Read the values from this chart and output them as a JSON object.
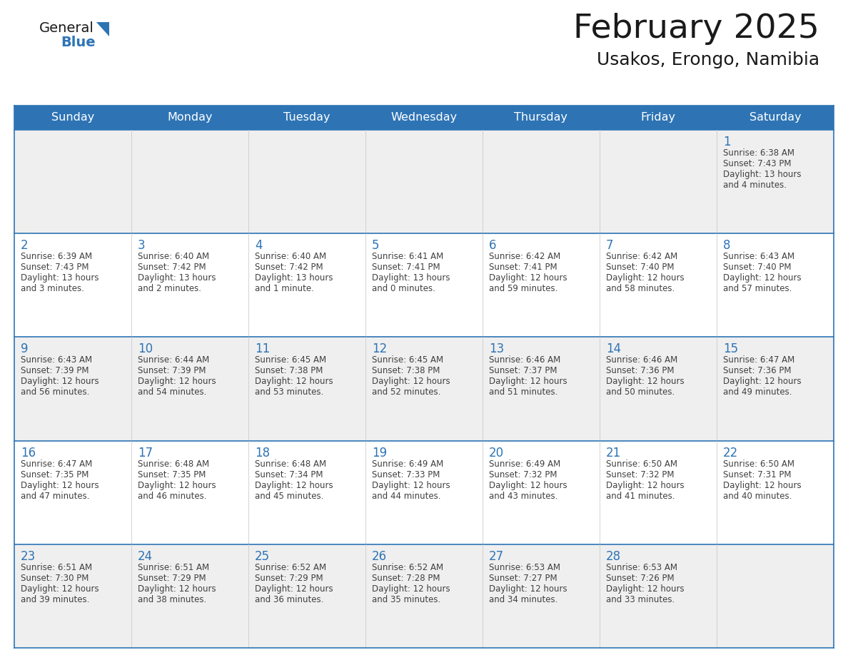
{
  "title": "February 2025",
  "subtitle": "Usakos, Erongo, Namibia",
  "days_of_week": [
    "Sunday",
    "Monday",
    "Tuesday",
    "Wednesday",
    "Thursday",
    "Friday",
    "Saturday"
  ],
  "header_bg_color": "#2e74b5",
  "header_text_color": "#ffffff",
  "cell_bg_white": "#ffffff",
  "cell_bg_gray": "#efefef",
  "day_number_color": "#2e74b5",
  "info_text_color": "#404040",
  "border_color": "#2e74b5",
  "row_divider_color": "#2e74b5",
  "col_divider_color": "#cccccc",
  "title_color": "#1a1a1a",
  "subtitle_color": "#1a1a1a",
  "logo_general_color": "#1a1a1a",
  "logo_blue_color": "#2e74b5",
  "logo_triangle_color": "#2e74b5",
  "calendar_data": [
    [
      null,
      null,
      null,
      null,
      null,
      null,
      {
        "day": 1,
        "sunrise": "6:38 AM",
        "sunset": "7:43 PM",
        "daylight": "13 hours and 4 minutes."
      }
    ],
    [
      {
        "day": 2,
        "sunrise": "6:39 AM",
        "sunset": "7:43 PM",
        "daylight": "13 hours and 3 minutes."
      },
      {
        "day": 3,
        "sunrise": "6:40 AM",
        "sunset": "7:42 PM",
        "daylight": "13 hours and 2 minutes."
      },
      {
        "day": 4,
        "sunrise": "6:40 AM",
        "sunset": "7:42 PM",
        "daylight": "13 hours and 1 minute."
      },
      {
        "day": 5,
        "sunrise": "6:41 AM",
        "sunset": "7:41 PM",
        "daylight": "13 hours and 0 minutes."
      },
      {
        "day": 6,
        "sunrise": "6:42 AM",
        "sunset": "7:41 PM",
        "daylight": "12 hours and 59 minutes."
      },
      {
        "day": 7,
        "sunrise": "6:42 AM",
        "sunset": "7:40 PM",
        "daylight": "12 hours and 58 minutes."
      },
      {
        "day": 8,
        "sunrise": "6:43 AM",
        "sunset": "7:40 PM",
        "daylight": "12 hours and 57 minutes."
      }
    ],
    [
      {
        "day": 9,
        "sunrise": "6:43 AM",
        "sunset": "7:39 PM",
        "daylight": "12 hours and 56 minutes."
      },
      {
        "day": 10,
        "sunrise": "6:44 AM",
        "sunset": "7:39 PM",
        "daylight": "12 hours and 54 minutes."
      },
      {
        "day": 11,
        "sunrise": "6:45 AM",
        "sunset": "7:38 PM",
        "daylight": "12 hours and 53 minutes."
      },
      {
        "day": 12,
        "sunrise": "6:45 AM",
        "sunset": "7:38 PM",
        "daylight": "12 hours and 52 minutes."
      },
      {
        "day": 13,
        "sunrise": "6:46 AM",
        "sunset": "7:37 PM",
        "daylight": "12 hours and 51 minutes."
      },
      {
        "day": 14,
        "sunrise": "6:46 AM",
        "sunset": "7:36 PM",
        "daylight": "12 hours and 50 minutes."
      },
      {
        "day": 15,
        "sunrise": "6:47 AM",
        "sunset": "7:36 PM",
        "daylight": "12 hours and 49 minutes."
      }
    ],
    [
      {
        "day": 16,
        "sunrise": "6:47 AM",
        "sunset": "7:35 PM",
        "daylight": "12 hours and 47 minutes."
      },
      {
        "day": 17,
        "sunrise": "6:48 AM",
        "sunset": "7:35 PM",
        "daylight": "12 hours and 46 minutes."
      },
      {
        "day": 18,
        "sunrise": "6:48 AM",
        "sunset": "7:34 PM",
        "daylight": "12 hours and 45 minutes."
      },
      {
        "day": 19,
        "sunrise": "6:49 AM",
        "sunset": "7:33 PM",
        "daylight": "12 hours and 44 minutes."
      },
      {
        "day": 20,
        "sunrise": "6:49 AM",
        "sunset": "7:32 PM",
        "daylight": "12 hours and 43 minutes."
      },
      {
        "day": 21,
        "sunrise": "6:50 AM",
        "sunset": "7:32 PM",
        "daylight": "12 hours and 41 minutes."
      },
      {
        "day": 22,
        "sunrise": "6:50 AM",
        "sunset": "7:31 PM",
        "daylight": "12 hours and 40 minutes."
      }
    ],
    [
      {
        "day": 23,
        "sunrise": "6:51 AM",
        "sunset": "7:30 PM",
        "daylight": "12 hours and 39 minutes."
      },
      {
        "day": 24,
        "sunrise": "6:51 AM",
        "sunset": "7:29 PM",
        "daylight": "12 hours and 38 minutes."
      },
      {
        "day": 25,
        "sunrise": "6:52 AM",
        "sunset": "7:29 PM",
        "daylight": "12 hours and 36 minutes."
      },
      {
        "day": 26,
        "sunrise": "6:52 AM",
        "sunset": "7:28 PM",
        "daylight": "12 hours and 35 minutes."
      },
      {
        "day": 27,
        "sunrise": "6:53 AM",
        "sunset": "7:27 PM",
        "daylight": "12 hours and 34 minutes."
      },
      {
        "day": 28,
        "sunrise": "6:53 AM",
        "sunset": "7:26 PM",
        "daylight": "12 hours and 33 minutes."
      },
      null
    ]
  ]
}
